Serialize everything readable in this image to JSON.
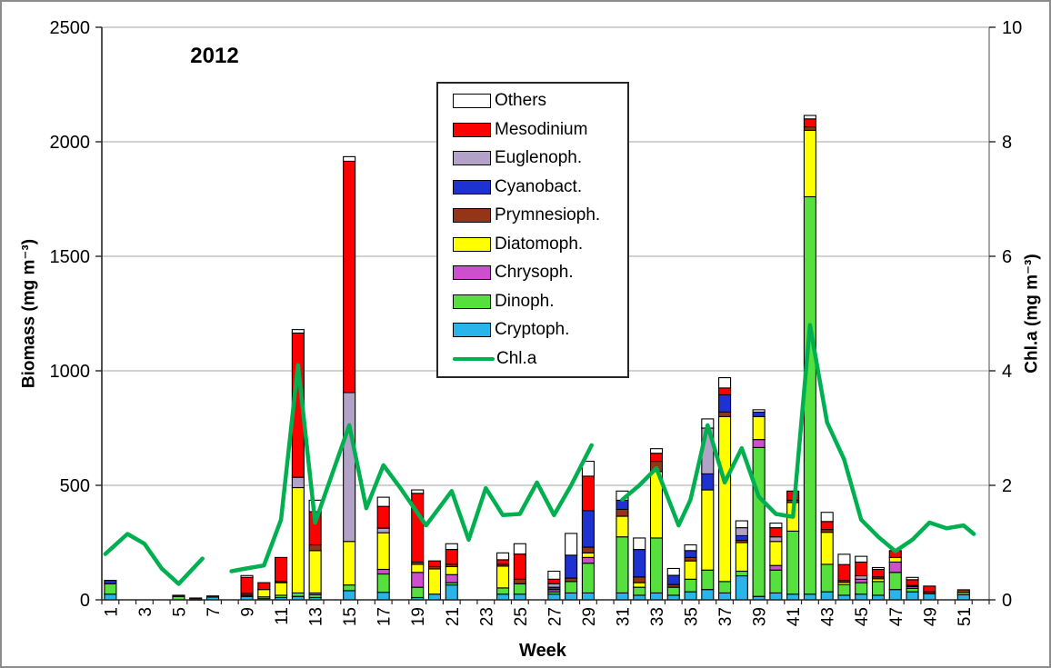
{
  "chart_data": {
    "type": "stacked-bar+line",
    "title": "2012",
    "x_axis": {
      "label": "Week",
      "weeks": 52,
      "tick_labels": [
        1,
        3,
        5,
        7,
        9,
        11,
        13,
        15,
        17,
        19,
        21,
        23,
        25,
        27,
        29,
        31,
        33,
        35,
        37,
        39,
        41,
        43,
        45,
        47,
        49,
        51
      ]
    },
    "y_left": {
      "label": "Biomass (mg m⁻³)",
      "min": 0,
      "max": 2500,
      "step": 500
    },
    "y_right": {
      "label": "Chl.a (mg m⁻³)",
      "min": 0,
      "max": 10,
      "step": 2
    },
    "grid_color": "#a6a6a6",
    "series_bottom_to_top": [
      "Cryptoph.",
      "Dinoph.",
      "Chrysoph.",
      "Diatomoph.",
      "Prymnesioph.",
      "Cyanobact.",
      "Euglenoph.",
      "Mesodinium",
      "Others"
    ],
    "series_colors": {
      "Others": "#ffffff",
      "Mesodinium": "#ff0000",
      "Euglenoph.": "#b3a2c7",
      "Cyanobact.": "#1e32d2",
      "Prymnesioph.": "#953517",
      "Diatomoph.": "#ffff00",
      "Chrysoph.": "#ce4fce",
      "Dinoph.": "#55e03e",
      "Cryptoph.": "#29b5ea"
    },
    "bars": [
      {
        "week": 1,
        "values": {
          "Cryptoph.": 25,
          "Dinoph.": 45,
          "Cyanobact.": 15
        }
      },
      {
        "week": 5,
        "values": {
          "Dinoph.": 15,
          "Prymnesioph.": 5
        }
      },
      {
        "week": 6,
        "values": {
          "Cryptoph.": 3,
          "Prymnesioph.": 5
        }
      },
      {
        "week": 7,
        "values": {
          "Cryptoph.": 12,
          "Prymnesioph.": 5
        }
      },
      {
        "week": 9,
        "values": {
          "Cryptoph.": 15,
          "Chrysoph.": 5,
          "Prymnesioph.": 8,
          "Mesodinium": 70,
          "Others": 8
        }
      },
      {
        "week": 10,
        "values": {
          "Cryptoph.": 5,
          "Dinoph.": 8,
          "Diatomoph.": 32,
          "Mesodinium": 30
        }
      },
      {
        "week": 11,
        "values": {
          "Cryptoph.": 10,
          "Dinoph.": 10,
          "Diatomoph.": 55,
          "Prymnesioph.": 5,
          "Mesodinium": 105
        }
      },
      {
        "week": 12,
        "values": {
          "Cryptoph.": 15,
          "Dinoph.": 15,
          "Diatomoph.": 460,
          "Euglenoph.": 45,
          "Mesodinium": 630,
          "Others": 15
        }
      },
      {
        "week": 13,
        "values": {
          "Cryptoph.": 10,
          "Dinoph.": 12,
          "Chrysoph.": 8,
          "Diatomoph.": 185,
          "Prymnesioph.": 25,
          "Mesodinium": 145,
          "Others": 50
        }
      },
      {
        "week": 15,
        "values": {
          "Cryptoph.": 40,
          "Dinoph.": 25,
          "Diatomoph.": 190,
          "Euglenoph.": 650,
          "Mesodinium": 1010,
          "Others": 20
        }
      },
      {
        "week": 17,
        "values": {
          "Cryptoph.": 33,
          "Dinoph.": 80,
          "Chrysoph.": 20,
          "Diatomoph.": 160,
          "Euglenoph.": 20,
          "Mesodinium": 95,
          "Others": 40
        }
      },
      {
        "week": 19,
        "values": {
          "Cryptoph.": 10,
          "Dinoph.": 45,
          "Chrysoph.": 65,
          "Diatomoph.": 35,
          "Prymnesioph.": 10,
          "Mesodinium": 300,
          "Others": 15
        }
      },
      {
        "week": 20,
        "values": {
          "Cryptoph.": 25,
          "Diatomoph.": 110,
          "Prymnesioph.": 10,
          "Mesodinium": 25
        }
      },
      {
        "week": 21,
        "values": {
          "Cryptoph.": 65,
          "Dinoph.": 10,
          "Chrysoph.": 35,
          "Diatomoph.": 35,
          "Prymnesioph.": 10,
          "Mesodinium": 65,
          "Others": 25
        }
      },
      {
        "week": 24,
        "values": {
          "Cryptoph.": 25,
          "Dinoph.": 27,
          "Diatomoph.": 95,
          "Prymnesioph.": 8,
          "Mesodinium": 20,
          "Others": 30
        }
      },
      {
        "week": 25,
        "values": {
          "Cryptoph.": 25,
          "Dinoph.": 45,
          "Prymnesioph.": 20,
          "Mesodinium": 110,
          "Others": 45
        }
      },
      {
        "week": 27,
        "values": {
          "Cryptoph.": 25,
          "Dinoph.": 10,
          "Chrysoph.": 10,
          "Euglenoph.": 15,
          "Cyanobact.": 10,
          "Mesodinium": 20,
          "Others": 35
        }
      },
      {
        "week": 28,
        "values": {
          "Cryptoph.": 30,
          "Dinoph.": 50,
          "Prymnesioph.": 15,
          "Cyanobact.": 100,
          "Others": 95
        }
      },
      {
        "week": 29,
        "values": {
          "Cryptoph.": 30,
          "Dinoph.": 130,
          "Chrysoph.": 25,
          "Diatomoph.": 20,
          "Prymnesioph.": 25,
          "Cyanobact.": 160,
          "Mesodinium": 150,
          "Others": 65
        }
      },
      {
        "week": 31,
        "values": {
          "Cryptoph.": 30,
          "Dinoph.": 245,
          "Diatomoph.": 90,
          "Prymnesioph.": 30,
          "Cyanobact.": 40,
          "Others": 40
        }
      },
      {
        "week": 32,
        "values": {
          "Cryptoph.": 20,
          "Dinoph.": 35,
          "Diatomoph.": 20,
          "Prymnesioph.": 25,
          "Cyanobact.": 120,
          "Others": 50
        }
      },
      {
        "week": 33,
        "values": {
          "Cryptoph.": 30,
          "Dinoph.": 240,
          "Diatomoph.": 290,
          "Prymnesioph.": 45,
          "Mesodinium": 35,
          "Others": 20
        }
      },
      {
        "week": 34,
        "values": {
          "Cryptoph.": 20,
          "Dinoph.": 35,
          "Prymnesioph.": 12,
          "Cyanobact.": 40,
          "Others": 30
        }
      },
      {
        "week": 35,
        "values": {
          "Cryptoph.": 35,
          "Dinoph.": 55,
          "Diatomoph.": 80,
          "Prymnesioph.": 15,
          "Cyanobact.": 30,
          "Others": 25
        }
      },
      {
        "week": 36,
        "values": {
          "Cryptoph.": 45,
          "Dinoph.": 85,
          "Diatomoph.": 350,
          "Cyanobact.": 70,
          "Euglenoph.": 200,
          "Others": 40
        }
      },
      {
        "week": 37,
        "values": {
          "Cryptoph.": 30,
          "Dinoph.": 50,
          "Diatomoph.": 720,
          "Prymnesioph.": 20,
          "Cyanobact.": 75,
          "Mesodinium": 30,
          "Others": 45
        }
      },
      {
        "week": 38,
        "values": {
          "Cryptoph.": 105,
          "Dinoph.": 20,
          "Diatomoph.": 125,
          "Prymnesioph.": 10,
          "Cyanobact.": 20,
          "Euglenoph.": 35,
          "Others": 30
        }
      },
      {
        "week": 39,
        "values": {
          "Cryptoph.": 15,
          "Dinoph.": 650,
          "Chrysoph.": 35,
          "Diatomoph.": 100,
          "Cyanobact.": 20,
          "Others": 10
        }
      },
      {
        "week": 40,
        "values": {
          "Cryptoph.": 30,
          "Dinoph.": 100,
          "Chrysoph.": 20,
          "Diatomoph.": 105,
          "Euglenoph.": 20,
          "Mesodinium": 40,
          "Others": 20
        }
      },
      {
        "week": 41,
        "values": {
          "Cryptoph.": 25,
          "Dinoph.": 275,
          "Diatomoph.": 125,
          "Prymnesioph.": 10,
          "Mesodinium": 40
        }
      },
      {
        "week": 42,
        "values": {
          "Cryptoph.": 25,
          "Dinoph.": 1735,
          "Diatomoph.": 290,
          "Prymnesioph.": 15,
          "Mesodinium": 35,
          "Others": 15
        }
      },
      {
        "week": 43,
        "values": {
          "Cryptoph.": 35,
          "Dinoph.": 120,
          "Diatomoph.": 140,
          "Prymnesioph.": 12,
          "Mesodinium": 35,
          "Others": 40
        }
      },
      {
        "week": 44,
        "values": {
          "Cryptoph.": 20,
          "Dinoph.": 46,
          "Diatomoph.": 10,
          "Prymnesioph.": 8,
          "Mesodinium": 70,
          "Others": 45
        }
      },
      {
        "week": 45,
        "values": {
          "Cryptoph.": 25,
          "Dinoph.": 50,
          "Chrysoph.": 15,
          "Euglenoph.": 15,
          "Mesodinium": 60,
          "Others": 25
        }
      },
      {
        "week": 46,
        "values": {
          "Cryptoph.": 20,
          "Dinoph.": 60,
          "Diatomoph.": 12,
          "Prymnesioph.": 8,
          "Mesodinium": 33,
          "Others": 8
        }
      },
      {
        "week": 47,
        "values": {
          "Cryptoph.": 45,
          "Dinoph.": 75,
          "Chrysoph.": 45,
          "Diatomoph.": 20,
          "Mesodinium": 30
        }
      },
      {
        "week": 48,
        "values": {
          "Cryptoph.": 35,
          "Dinoph.": 15,
          "Chrysoph.": 8,
          "Prymnesioph.": 5,
          "Mesodinium": 25,
          "Others": 10
        }
      },
      {
        "week": 49,
        "values": {
          "Cryptoph.": 27,
          "Prymnesioph.": 8,
          "Mesodinium": 25
        }
      },
      {
        "week": 51,
        "values": {
          "Cryptoph.": 22,
          "Dinoph.": 10,
          "Prymnesioph.": 12
        }
      }
    ],
    "line": {
      "name": "Chl.a",
      "color": "#00b050",
      "width": 4.5,
      "segments": [
        [
          [
            0.7,
            0.8
          ],
          [
            2,
            1.15
          ],
          [
            3,
            0.98
          ],
          [
            4,
            0.55
          ],
          [
            5,
            0.28
          ],
          [
            6.4,
            0.72
          ]
        ],
        [
          [
            8.1,
            0.5
          ],
          [
            9,
            0.55
          ],
          [
            10,
            0.6
          ],
          [
            11,
            1.4
          ],
          [
            12,
            4.1
          ],
          [
            13,
            1.35
          ],
          [
            14,
            2.2
          ],
          [
            15,
            3.05
          ],
          [
            16,
            1.6
          ],
          [
            17,
            2.35
          ],
          [
            18,
            1.95
          ],
          [
            19.5,
            1.3
          ],
          [
            21,
            1.9
          ],
          [
            22,
            1.05
          ],
          [
            23,
            1.95
          ],
          [
            24,
            1.48
          ],
          [
            25,
            1.5
          ],
          [
            26,
            2.05
          ],
          [
            27,
            1.48
          ],
          [
            28,
            2.0
          ],
          [
            29.2,
            2.7
          ]
        ],
        [
          [
            31,
            1.75
          ],
          [
            32,
            2.0
          ],
          [
            33,
            2.3
          ],
          [
            34.3,
            1.3
          ],
          [
            35,
            1.75
          ],
          [
            36,
            3.05
          ],
          [
            37,
            2.05
          ],
          [
            38,
            2.65
          ],
          [
            39,
            1.8
          ],
          [
            40,
            1.5
          ],
          [
            41,
            1.45
          ],
          [
            42,
            4.8
          ],
          [
            43,
            3.1
          ],
          [
            44,
            2.45
          ],
          [
            45,
            1.4
          ],
          [
            46,
            1.1
          ],
          [
            47,
            0.85
          ],
          [
            48,
            1.05
          ],
          [
            49,
            1.35
          ],
          [
            50,
            1.25
          ],
          [
            51,
            1.3
          ],
          [
            51.6,
            1.15
          ]
        ]
      ]
    },
    "legend": {
      "items": [
        "Others",
        "Mesodinium",
        "Euglenoph.",
        "Cyanobact.",
        "Prymnesioph.",
        "Diatomoph.",
        "Chrysoph.",
        "Dinoph.",
        "Cryptoph.",
        "Chl.a"
      ]
    }
  }
}
